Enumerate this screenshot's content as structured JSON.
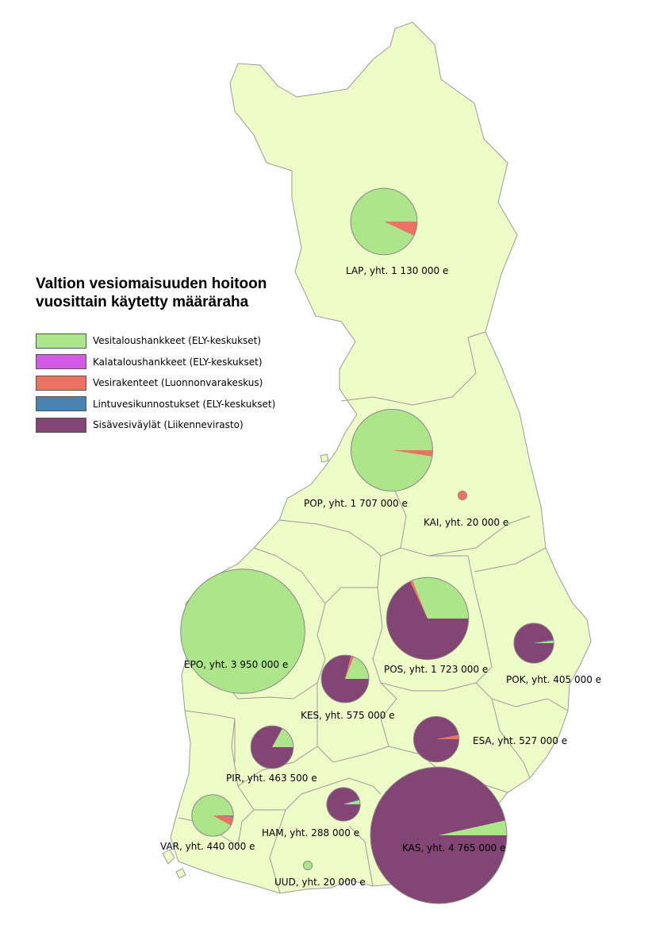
{
  "title_line1": "Valtion vesiomaisuuden hoitoon",
  "title_line2": "vuosittain käytetty määräraha",
  "colors": {
    "land": "#eefcc8",
    "border": "#9a9a9a",
    "Vesitaloushankkeet": "#ade68a",
    "Kalataloushankkeet": "#d25ae6",
    "Vesirakenteet": "#ee7262",
    "Lintuvesikunnostukset": "#4a83b0",
    "Sisavesivaylat": "#834574"
  },
  "legend": [
    {
      "key": "Vesitaloushankkeet",
      "label": "Vesitaloushankkeet (ELY-keskukset)"
    },
    {
      "key": "Kalataloushankkeet",
      "label": "Kalataloushankkeet (ELY-keskukset)"
    },
    {
      "key": "Vesirakenteet",
      "label": "Vesirakenteet (Luonnonvarakeskus)"
    },
    {
      "key": "Lintuvesikunnostukset",
      "label": "Lintuvesikunnostukset (ELY-keskukset)"
    },
    {
      "key": "Sisavesivaylat",
      "label": "Sisävesiväylät (Liikennevirasto)"
    }
  ],
  "regions": [
    {
      "code": "LAP",
      "label": "LAP, yht. 1 130 000 e",
      "total": 1130000,
      "shares": {
        "Vesitaloushankkeet": 0.93,
        "Vesirakenteet": 0.07
      }
    },
    {
      "code": "POP",
      "label": "POP, yht. 1 707 000 e",
      "total": 1707000,
      "shares": {
        "Vesitaloushankkeet": 0.975,
        "Vesirakenteet": 0.025
      }
    },
    {
      "code": "KAI",
      "label": "KAI, yht. 20 000 e",
      "total": 20000,
      "shares": {
        "Vesirakenteet": 1.0
      }
    },
    {
      "code": "EPO",
      "label": "EPO, yht. 3 950 000 e",
      "total": 3950000,
      "shares": {
        "Vesitaloushankkeet": 1.0
      }
    },
    {
      "code": "POS",
      "label": "POS, yht. 1 723 000 e",
      "total": 1723000,
      "shares": {
        "Vesitaloushankkeet": 0.31,
        "Vesirakenteet": 0.01,
        "Sisavesivaylat": 0.68
      }
    },
    {
      "code": "POK",
      "label": "POK, yht. 405 000 e",
      "total": 405000,
      "shares": {
        "Vesitaloushankkeet": 0.02,
        "Lintuvesikunnostukset": 0.01,
        "Sisavesivaylat": 0.97
      }
    },
    {
      "code": "KES",
      "label": "KES, yht. 575 000 e",
      "total": 575000,
      "shares": {
        "Vesitaloushankkeet": 0.19,
        "Vesirakenteet": 0.02,
        "Sisavesivaylat": 0.79
      }
    },
    {
      "code": "ESA",
      "label": "ESA, yht. 527 000 e",
      "total": 527000,
      "shares": {
        "Vesirakenteet": 0.03,
        "Sisavesivaylat": 0.97
      }
    },
    {
      "code": "PIR",
      "label": "PIR, yht. 463 500 e",
      "total": 463500,
      "shares": {
        "Vesitaloushankkeet": 0.17,
        "Sisavesivaylat": 0.83
      }
    },
    {
      "code": "HAM",
      "label": "HAM, yht. 288 000 e",
      "total": 288000,
      "shares": {
        "Vesitaloushankkeet": 0.04,
        "Lintuvesikunnostukset": 0.01,
        "Sisavesivaylat": 0.95
      }
    },
    {
      "code": "KAS",
      "label": "KAS, yht. 4 765 000 e",
      "total": 4765000,
      "shares": {
        "Vesitaloushankkeet": 0.035,
        "Sisavesivaylat": 0.965
      }
    },
    {
      "code": "VAR",
      "label": "VAR, yht. 440 000 e",
      "total": 440000,
      "shares": {
        "Vesitaloushankkeet": 0.92,
        "Vesirakenteet": 0.07,
        "Lintuvesikunnostukset": 0.01
      }
    },
    {
      "code": "UUD",
      "label": "UUD, yht. 20 000 e",
      "total": 20000,
      "shares": {
        "Vesitaloushankkeet": 1.0
      }
    }
  ]
}
